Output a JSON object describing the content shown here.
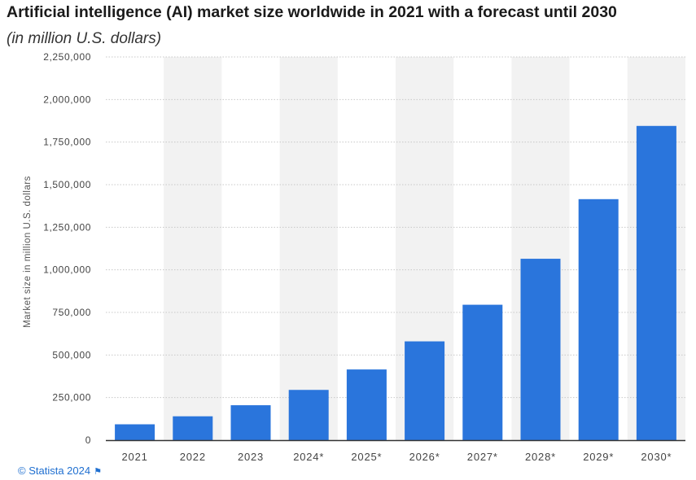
{
  "title": "Artificial intelligence (AI) market size worldwide in 2021 with a forecast until 2030",
  "subtitle": "(in million U.S. dollars)",
  "footer": {
    "source": "© Statista 2024",
    "flag_icon": "flag-icon"
  },
  "colors": {
    "bar": "#2a75dc",
    "stripe": "#f2f2f2",
    "grid": "#c8c8c8",
    "axis": "#333333",
    "tick_text": "#444444"
  },
  "chart_data": {
    "type": "bar",
    "title": "Artificial intelligence (AI) market size worldwide in 2021 with a forecast until 2030",
    "xlabel": "",
    "ylabel": "Market size in million U.S. dollars",
    "categories": [
      "2021",
      "2022",
      "2023",
      "2024*",
      "2025*",
      "2026*",
      "2027*",
      "2028*",
      "2029*",
      "2030*"
    ],
    "values": [
      93000,
      140000,
      205000,
      295000,
      415000,
      580000,
      795000,
      1065000,
      1415000,
      1845000
    ],
    "ylim": [
      0,
      2250000
    ],
    "yticks": [
      0,
      250000,
      500000,
      750000,
      1000000,
      1250000,
      1500000,
      1750000,
      2000000,
      2250000
    ],
    "ytick_labels": [
      "0",
      "250,000",
      "500,000",
      "750,000",
      "1,000,000",
      "1,250,000",
      "1,500,000",
      "1,750,000",
      "2,000,000",
      "2,250,000"
    ],
    "grid": true
  }
}
